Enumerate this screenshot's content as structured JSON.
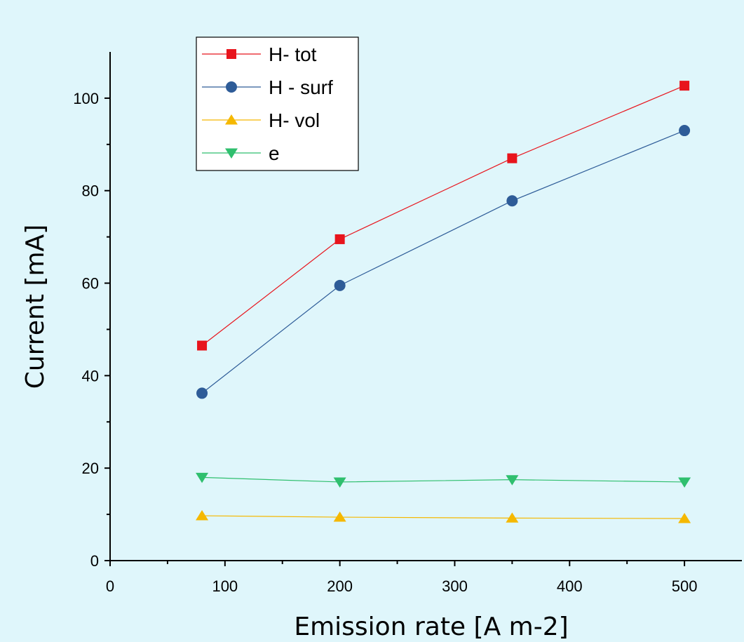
{
  "chart_data": {
    "type": "line",
    "title": "",
    "xlabel": "Emission rate [A m-2]",
    "ylabel": "Current  [mA]",
    "xlim": [
      0,
      550
    ],
    "ylim": [
      0,
      110
    ],
    "x_ticks": [
      0,
      100,
      200,
      300,
      400,
      500
    ],
    "y_ticks": [
      0,
      20,
      40,
      60,
      80,
      100
    ],
    "x_tick_labels": [
      "0",
      "100",
      "200",
      "300",
      "400",
      "500"
    ],
    "y_tick_labels": [
      "0",
      "20",
      "40",
      "60",
      "80",
      "100"
    ],
    "x": [
      80,
      200,
      350,
      500
    ],
    "series": [
      {
        "name": "H- tot",
        "values": [
          46.5,
          69.5,
          87.0,
          102.7
        ],
        "color": "#e8141c",
        "marker": "square"
      },
      {
        "name": "H - surf",
        "values": [
          36.2,
          59.5,
          77.8,
          93.0
        ],
        "color": "#2e5c98",
        "marker": "circle"
      },
      {
        "name": "H- vol",
        "values": [
          9.7,
          9.4,
          9.2,
          9.1
        ],
        "color": "#f5b800",
        "marker": "triangle-up"
      },
      {
        "name": "e",
        "values": [
          18.0,
          17.0,
          17.5,
          17.0
        ],
        "color": "#2fbf6e",
        "marker": "triangle-down"
      }
    ],
    "grid": false,
    "legend_position": "top-left"
  }
}
